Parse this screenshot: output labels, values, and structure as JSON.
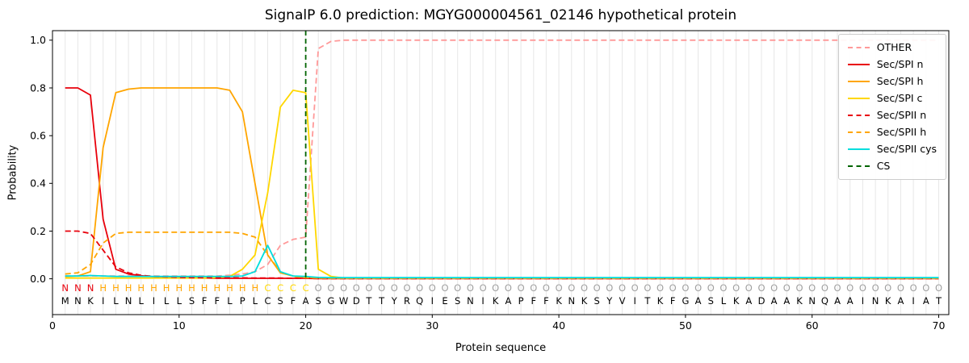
{
  "chart_data": {
    "type": "line",
    "title": "SignalP 6.0 prediction: MGYG000004561_02146 hypothetical protein",
    "xlabel": "Protein sequence",
    "ylabel": "Probability",
    "xlim": [
      0,
      70.8
    ],
    "ylim": [
      -0.15,
      1.04
    ],
    "xticks": [
      0,
      10,
      20,
      30,
      40,
      50,
      60,
      70
    ],
    "yticks": [
      0.0,
      0.2,
      0.4,
      0.6,
      0.8,
      1.0
    ],
    "grid": "vertical-per-residue",
    "grid_color": "#e7e7e7",
    "spine_color": "#000000",
    "background": "#ffffff",
    "legend_position": "upper right",
    "series": [
      {
        "name": "OTHER",
        "color": "#ff9999",
        "dash": true,
        "values": [
          0.012,
          0.012,
          0.012,
          0.012,
          0.012,
          0.012,
          0.012,
          0.012,
          0.012,
          0.012,
          0.012,
          0.012,
          0.012,
          0.015,
          0.02,
          0.03,
          0.06,
          0.14,
          0.165,
          0.175,
          0.965,
          0.995,
          1.0,
          1.0,
          1.0,
          1.0,
          1.0,
          1.0,
          1.0,
          1.0,
          1.0,
          1.0,
          1.0,
          1.0,
          1.0,
          1.0,
          1.0,
          1.0,
          1.0,
          1.0,
          1.0,
          1.0,
          1.0,
          1.0,
          1.0,
          1.0,
          1.0,
          1.0,
          1.0,
          1.0,
          1.0,
          1.0,
          1.0,
          1.0,
          1.0,
          1.0,
          1.0,
          1.0,
          1.0,
          1.0,
          1.0,
          1.0,
          1.0,
          1.0,
          1.0,
          1.0,
          1.0,
          1.0,
          1.0,
          1.0
        ]
      },
      {
        "name": "Sec/SPI n",
        "color": "#e8000b",
        "dash": false,
        "values": [
          0.8,
          0.8,
          0.77,
          0.25,
          0.04,
          0.02,
          0.013,
          0.009,
          0.006,
          0.005,
          0.004,
          0.003,
          0.002,
          0.002,
          0.002,
          0.002,
          0.002,
          0.002,
          0.002,
          0.002,
          0.001,
          0.001,
          0.001,
          0.001,
          0.001,
          0.001,
          0.001,
          0.001,
          0.001,
          0.001,
          0.001,
          0.001,
          0.001,
          0.001,
          0.001,
          0.001,
          0.001,
          0.001,
          0.001,
          0.001,
          0.001,
          0.001,
          0.001,
          0.001,
          0.001,
          0.001,
          0.001,
          0.001,
          0.001,
          0.001,
          0.001,
          0.001,
          0.001,
          0.001,
          0.001,
          0.001,
          0.001,
          0.001,
          0.001,
          0.001,
          0.001,
          0.001,
          0.001,
          0.001,
          0.001,
          0.001,
          0.001,
          0.001,
          0.001,
          0.001
        ]
      },
      {
        "name": "Sec/SPI h",
        "color": "#ffa500",
        "dash": false,
        "values": [
          0.01,
          0.012,
          0.03,
          0.55,
          0.78,
          0.795,
          0.8,
          0.8,
          0.8,
          0.8,
          0.8,
          0.8,
          0.8,
          0.79,
          0.7,
          0.4,
          0.1,
          0.025,
          0.012,
          0.007,
          0.003,
          0.002,
          0.002,
          0.002,
          0.002,
          0.002,
          0.002,
          0.002,
          0.002,
          0.002,
          0.002,
          0.002,
          0.002,
          0.002,
          0.002,
          0.002,
          0.002,
          0.002,
          0.002,
          0.002,
          0.002,
          0.002,
          0.002,
          0.002,
          0.002,
          0.002,
          0.002,
          0.002,
          0.002,
          0.002,
          0.002,
          0.002,
          0.002,
          0.002,
          0.002,
          0.002,
          0.002,
          0.002,
          0.002,
          0.002,
          0.002,
          0.002,
          0.002,
          0.002,
          0.002,
          0.002,
          0.002,
          0.002,
          0.002,
          0.002
        ]
      },
      {
        "name": "Sec/SPI c",
        "color": "#ffd700",
        "dash": false,
        "values": [
          0.003,
          0.003,
          0.003,
          0.003,
          0.003,
          0.003,
          0.003,
          0.003,
          0.003,
          0.003,
          0.003,
          0.003,
          0.005,
          0.01,
          0.04,
          0.1,
          0.36,
          0.72,
          0.79,
          0.78,
          0.04,
          0.01,
          0.003,
          0.003,
          0.003,
          0.003,
          0.003,
          0.003,
          0.003,
          0.003,
          0.003,
          0.003,
          0.003,
          0.003,
          0.003,
          0.003,
          0.003,
          0.003,
          0.003,
          0.003,
          0.003,
          0.003,
          0.003,
          0.003,
          0.003,
          0.003,
          0.003,
          0.003,
          0.003,
          0.003,
          0.003,
          0.003,
          0.003,
          0.003,
          0.003,
          0.003,
          0.003,
          0.003,
          0.003,
          0.003,
          0.003,
          0.003,
          0.003,
          0.003,
          0.003,
          0.003,
          0.003,
          0.003,
          0.003,
          0.003
        ]
      },
      {
        "name": "Sec/SPII n",
        "color": "#e8000b",
        "dash": true,
        "values": [
          0.2,
          0.2,
          0.19,
          0.12,
          0.05,
          0.025,
          0.015,
          0.01,
          0.008,
          0.006,
          0.005,
          0.005,
          0.004,
          0.004,
          0.004,
          0.003,
          0.003,
          0.003,
          0.002,
          0.002,
          0.001,
          0.001,
          0.001,
          0.001,
          0.001,
          0.001,
          0.001,
          0.001,
          0.001,
          0.001,
          0.001,
          0.001,
          0.001,
          0.001,
          0.001,
          0.001,
          0.001,
          0.001,
          0.001,
          0.001,
          0.001,
          0.001,
          0.001,
          0.001,
          0.001,
          0.001,
          0.001,
          0.001,
          0.001,
          0.001,
          0.001,
          0.001,
          0.001,
          0.001,
          0.001,
          0.001,
          0.001,
          0.001,
          0.001,
          0.001,
          0.001,
          0.001,
          0.001,
          0.001,
          0.001,
          0.001,
          0.001,
          0.001,
          0.001,
          0.001
        ]
      },
      {
        "name": "Sec/SPII h",
        "color": "#ffa500",
        "dash": true,
        "values": [
          0.02,
          0.025,
          0.06,
          0.15,
          0.19,
          0.195,
          0.195,
          0.195,
          0.195,
          0.195,
          0.195,
          0.195,
          0.195,
          0.195,
          0.19,
          0.175,
          0.1,
          0.03,
          0.01,
          0.005,
          0.003,
          0.002,
          0.002,
          0.002,
          0.002,
          0.002,
          0.002,
          0.002,
          0.002,
          0.002,
          0.002,
          0.002,
          0.002,
          0.002,
          0.002,
          0.002,
          0.002,
          0.002,
          0.002,
          0.002,
          0.002,
          0.002,
          0.002,
          0.002,
          0.002,
          0.002,
          0.002,
          0.002,
          0.002,
          0.002,
          0.002,
          0.002,
          0.002,
          0.002,
          0.002,
          0.002,
          0.002,
          0.002,
          0.002,
          0.002,
          0.002,
          0.002,
          0.002,
          0.002,
          0.002,
          0.002,
          0.002,
          0.002,
          0.002,
          0.002
        ]
      },
      {
        "name": "Sec/SPII cys",
        "color": "#00dddd",
        "dash": false,
        "values": [
          0.012,
          0.012,
          0.014,
          0.012,
          0.01,
          0.01,
          0.01,
          0.01,
          0.01,
          0.01,
          0.01,
          0.01,
          0.01,
          0.01,
          0.012,
          0.03,
          0.14,
          0.03,
          0.012,
          0.01,
          0.006,
          0.005,
          0.005,
          0.005,
          0.005,
          0.005,
          0.005,
          0.005,
          0.005,
          0.005,
          0.005,
          0.005,
          0.005,
          0.005,
          0.005,
          0.005,
          0.005,
          0.005,
          0.005,
          0.005,
          0.005,
          0.005,
          0.005,
          0.005,
          0.005,
          0.005,
          0.005,
          0.005,
          0.005,
          0.005,
          0.005,
          0.005,
          0.005,
          0.005,
          0.005,
          0.005,
          0.005,
          0.005,
          0.005,
          0.005,
          0.005,
          0.005,
          0.005,
          0.005,
          0.005,
          0.005,
          0.005,
          0.005,
          0.005,
          0.005
        ]
      }
    ],
    "cs_line": {
      "name": "CS",
      "x": 20,
      "color": "#006400",
      "dash": true
    },
    "sequence": "MNKILNLILLSFFLPLCSFASGWDTTYRQIESNIKAPFFKNKSYVITKFGASLKADAAKNQAAINKAIAT",
    "regions": "NNNHHHHHHHHHHHHHCCCCOOOOOOOOOOOOOOOOOOOOOOOOOOOOOOOOOOOOOOOOOOOOOOOOOO",
    "region_colors": {
      "N": "#e8000b",
      "H": "#ffa500",
      "C": "#ffd700",
      "O": "#a0a0a0"
    },
    "sequence_color": "#000000"
  }
}
